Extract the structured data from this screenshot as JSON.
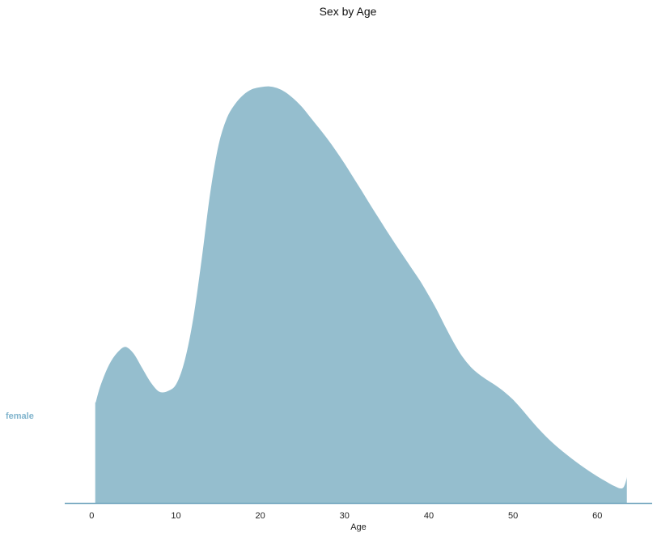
{
  "chart_data": {
    "type": "area",
    "title": "Sex by Age",
    "xlabel": "Age",
    "ylabel": "",
    "xlim": [
      -3.2,
      66.5
    ],
    "ylim": [
      0,
      1.0
    ],
    "x_ticks": [
      0,
      10,
      20,
      30,
      40,
      50,
      60
    ],
    "grid": false,
    "legend": "none",
    "colors": {
      "fill": "#95BECE",
      "baseline": "#6FA3BD",
      "label": "#7FB3CC"
    },
    "series": [
      {
        "name": "female",
        "x": [
          0.42,
          1,
          2,
          3,
          4,
          5,
          6,
          7,
          8,
          9,
          10,
          11,
          12,
          13,
          14,
          15,
          16,
          17,
          18,
          19,
          20,
          21,
          22,
          23,
          24,
          25,
          26,
          27,
          28,
          29,
          30,
          31,
          32,
          33,
          34,
          35,
          36,
          37,
          38,
          39,
          40,
          41,
          42,
          43,
          44,
          45,
          46,
          47,
          48,
          49,
          50,
          51,
          52,
          53,
          54,
          55,
          56,
          57,
          58,
          59,
          60,
          61,
          62,
          63,
          63.5
        ],
        "y": [
          0.242,
          0.283,
          0.332,
          0.362,
          0.376,
          0.36,
          0.326,
          0.292,
          0.269,
          0.27,
          0.287,
          0.344,
          0.444,
          0.586,
          0.743,
          0.859,
          0.924,
          0.958,
          0.98,
          0.993,
          0.998,
          1.0,
          0.996,
          0.986,
          0.97,
          0.95,
          0.925,
          0.9,
          0.874,
          0.846,
          0.816,
          0.784,
          0.752,
          0.719,
          0.687,
          0.655,
          0.624,
          0.594,
          0.564,
          0.534,
          0.5,
          0.464,
          0.424,
          0.386,
          0.353,
          0.328,
          0.31,
          0.296,
          0.283,
          0.268,
          0.25,
          0.228,
          0.204,
          0.181,
          0.16,
          0.141,
          0.124,
          0.108,
          0.093,
          0.079,
          0.066,
          0.054,
          0.043,
          0.038,
          0.066
        ]
      }
    ]
  }
}
